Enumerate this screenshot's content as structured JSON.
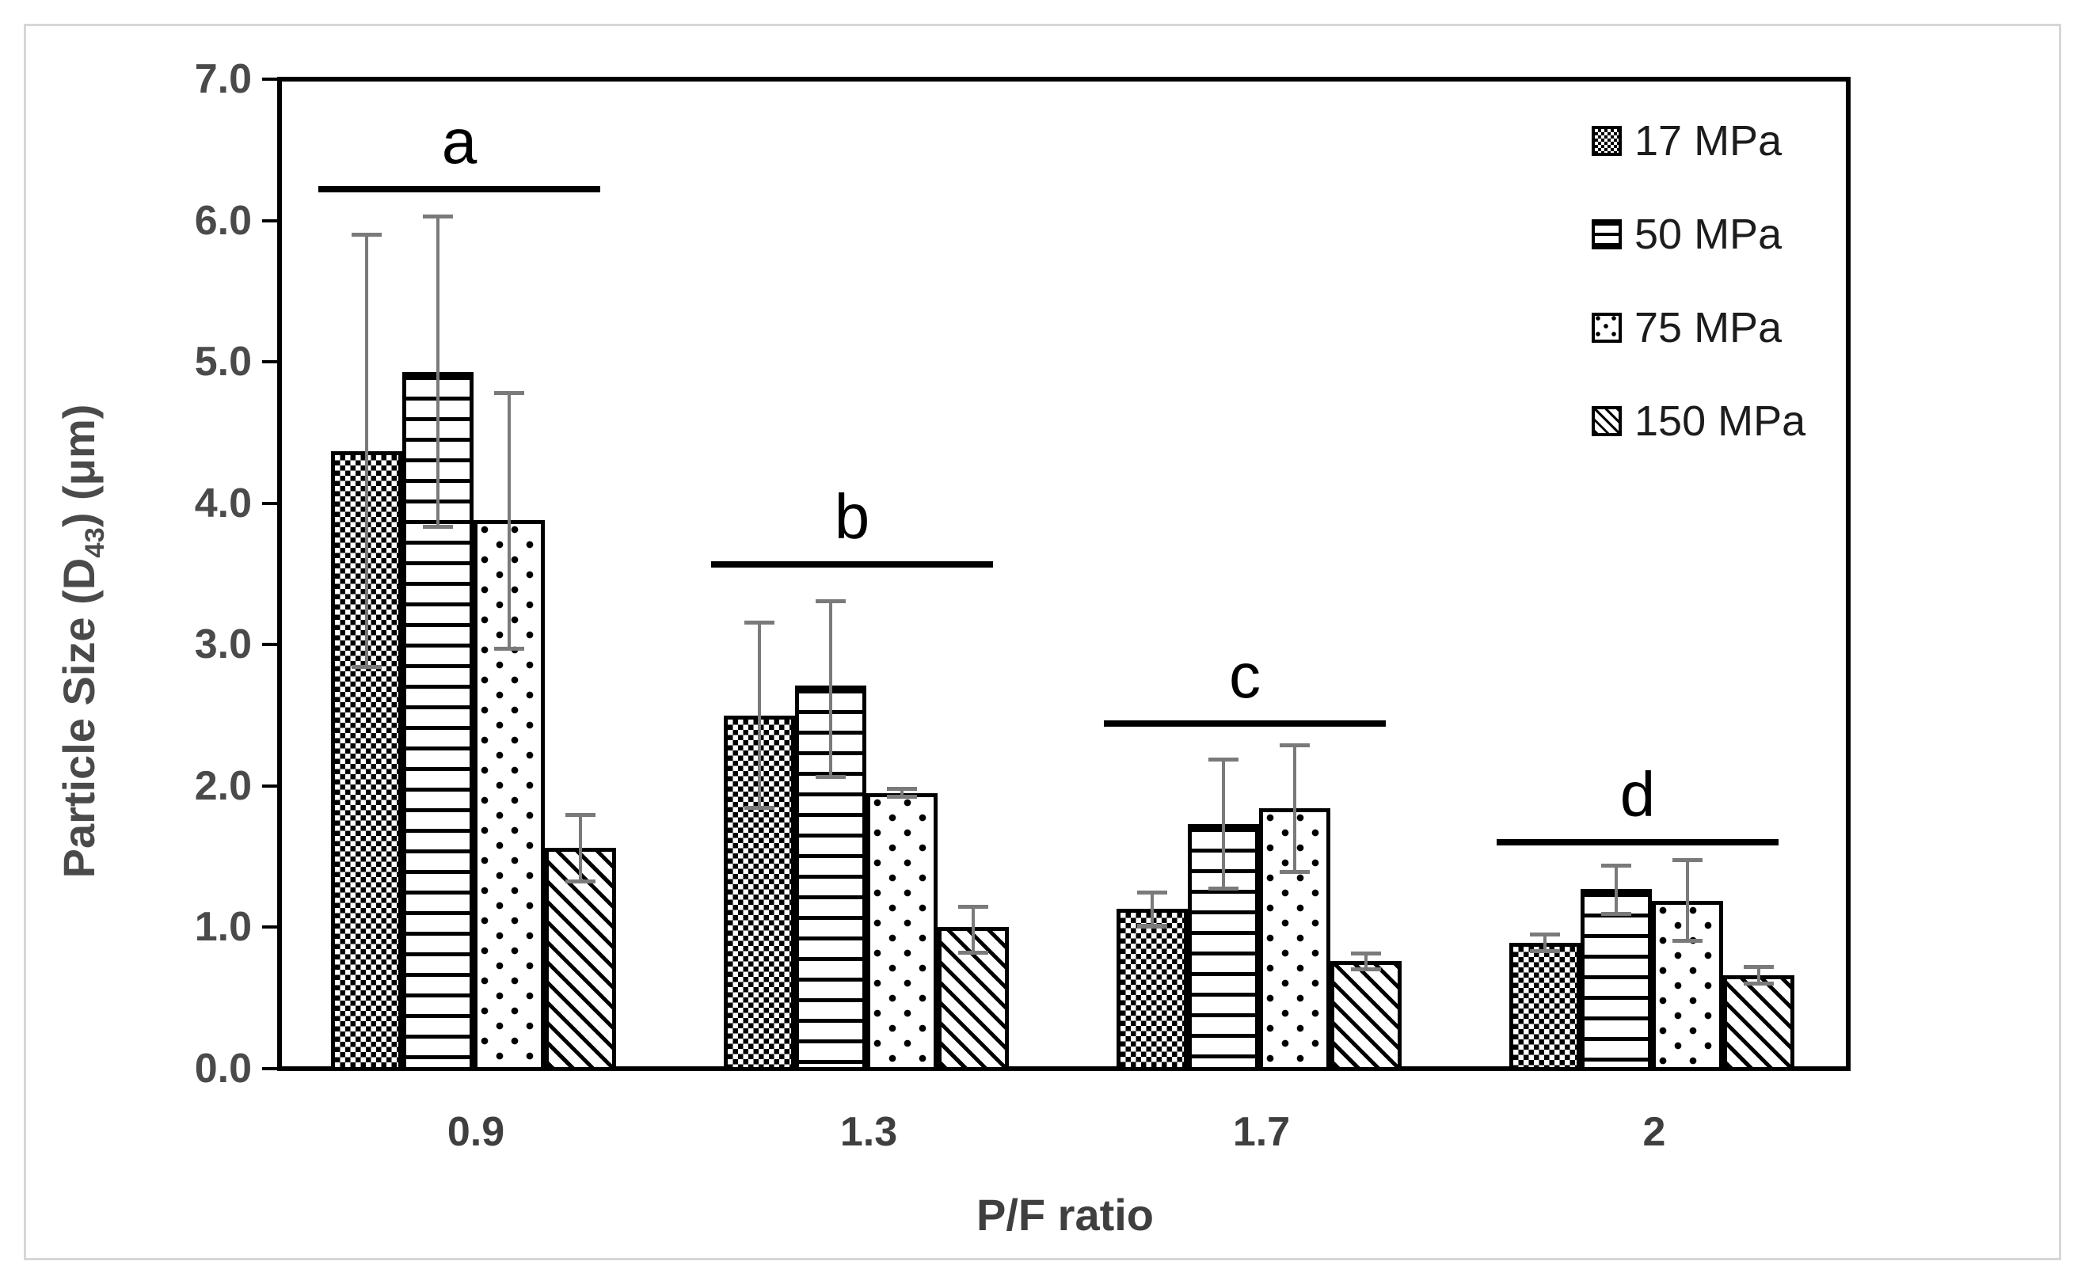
{
  "figure": {
    "background_color": "#ffffff",
    "frame_border_color": "#d7d7d7",
    "axis_color": "#000000",
    "error_bar_color": "#7a7a7a",
    "axis_text_color": "#4a4a4a"
  },
  "chart_data": {
    "type": "bar",
    "title": "",
    "xlabel": "P/F ratio",
    "ylabel": "Particle Size (D43) (μm)",
    "ylabel_parts": {
      "prefix": "Particle Size (D",
      "sub": "43",
      "suffix": ") (μm)"
    },
    "categories": [
      "0.9",
      "1.3",
      "1.7",
      "2"
    ],
    "yticks": [
      "0.0",
      "1.0",
      "2.0",
      "3.0",
      "4.0",
      "5.0",
      "6.0",
      "7.0"
    ],
    "ylim": [
      0,
      7
    ],
    "grid": false,
    "legend_position": "top-right",
    "series": [
      {
        "name": "17 MPa",
        "pattern": "dense-check",
        "values": [
          4.37,
          2.5,
          1.13,
          0.89
        ],
        "err_up": [
          1.53,
          0.66,
          0.12,
          0.06
        ],
        "err_dn": [
          1.53,
          0.66,
          0.12,
          0.06
        ]
      },
      {
        "name": "50 MPa",
        "pattern": "horizontal-lines",
        "values": [
          4.93,
          2.71,
          1.73,
          1.27
        ],
        "err_up": [
          1.1,
          0.6,
          0.46,
          0.17
        ],
        "err_dn": [
          1.1,
          0.65,
          0.46,
          0.18
        ]
      },
      {
        "name": "75 MPa",
        "pattern": "dots",
        "values": [
          3.88,
          1.95,
          1.84,
          1.19
        ],
        "err_up": [
          0.9,
          0.03,
          0.45,
          0.29
        ],
        "err_dn": [
          0.91,
          0.03,
          0.45,
          0.29
        ]
      },
      {
        "name": "150 MPa",
        "pattern": "diagonal-stripes",
        "values": [
          1.56,
          1.0,
          0.76,
          0.66
        ],
        "err_up": [
          0.24,
          0.15,
          0.06,
          0.06
        ],
        "err_dn": [
          0.24,
          0.18,
          0.06,
          0.06
        ]
      }
    ],
    "significance_markers": [
      {
        "label": "a",
        "group": 0,
        "y": 6.22
      },
      {
        "label": "b",
        "group": 1,
        "y": 3.57
      },
      {
        "label": "c",
        "group": 2,
        "y": 2.44
      },
      {
        "label": "d",
        "group": 3,
        "y": 1.6
      }
    ]
  }
}
